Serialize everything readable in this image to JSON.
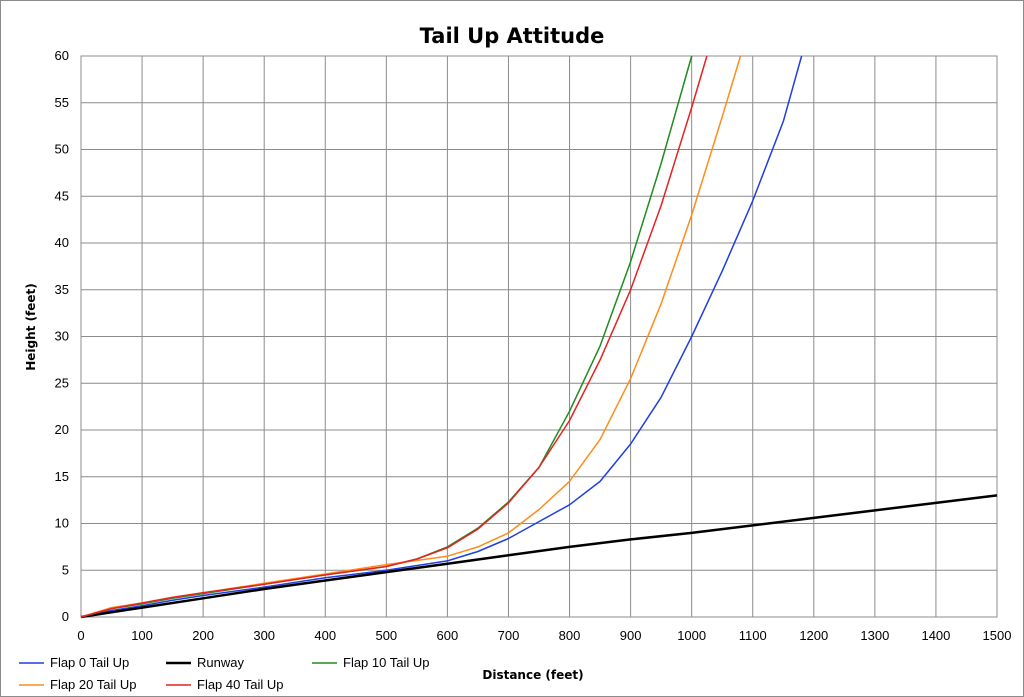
{
  "chart_data": {
    "type": "line",
    "title": "Tail Up Attitude",
    "xlabel": "Distance (feet)",
    "ylabel": "Height (feet)",
    "xlim": [
      0,
      1500
    ],
    "ylim": [
      0,
      60
    ],
    "x_ticks": [
      0,
      100,
      200,
      300,
      400,
      500,
      600,
      700,
      800,
      900,
      1000,
      1100,
      1200,
      1300,
      1400,
      1500
    ],
    "y_ticks": [
      0,
      5,
      10,
      15,
      20,
      25,
      30,
      35,
      40,
      45,
      50,
      55,
      60
    ],
    "grid": true,
    "legend_position": "bottom-left",
    "series": [
      {
        "name": "Flap 0 Tail Up",
        "color": "#1f3fe0",
        "x": [
          0,
          50,
          100,
          150,
          200,
          300,
          400,
          500,
          600,
          650,
          700,
          750,
          800,
          850,
          900,
          950,
          1000,
          1050,
          1100,
          1150,
          1180
        ],
        "y": [
          0,
          0.7,
          1.2,
          1.8,
          2.3,
          3.2,
          4.2,
          5.0,
          6.0,
          7.0,
          8.4,
          10.2,
          12.0,
          14.5,
          18.5,
          23.5,
          30,
          37,
          44.5,
          53,
          60
        ]
      },
      {
        "name": "Runway",
        "color": "#000000",
        "x": [
          0,
          50,
          100,
          200,
          300,
          400,
          500,
          600,
          700,
          800,
          900,
          1000,
          1100,
          1200,
          1300,
          1400,
          1500
        ],
        "y": [
          0,
          0.5,
          1.0,
          2.0,
          3.0,
          3.9,
          4.8,
          5.7,
          6.6,
          7.5,
          8.3,
          9.0,
          9.8,
          10.6,
          11.4,
          12.2,
          13.0
        ]
      },
      {
        "name": "Flap 10 Tail Up",
        "color": "#1e8c1e",
        "x": [
          0,
          50,
          100,
          150,
          200,
          300,
          400,
          500,
          550,
          600,
          650,
          700,
          750,
          800,
          850,
          900,
          950,
          1000
        ],
        "y": [
          0,
          0.9,
          1.4,
          2.0,
          2.5,
          3.5,
          4.5,
          5.4,
          6.2,
          7.5,
          9.5,
          12.3,
          16.0,
          22.0,
          29.0,
          38.0,
          48.5,
          60
        ]
      },
      {
        "name": "Flap 20 Tail Up",
        "color": "#ff8c1a",
        "x": [
          0,
          50,
          100,
          150,
          200,
          300,
          400,
          500,
          600,
          650,
          700,
          750,
          800,
          850,
          900,
          950,
          1000,
          1050,
          1080
        ],
        "y": [
          0,
          1.0,
          1.5,
          2.1,
          2.6,
          3.6,
          4.6,
          5.6,
          6.5,
          7.5,
          9.0,
          11.5,
          14.5,
          19.0,
          25.5,
          33.5,
          43.0,
          53.5,
          60
        ]
      },
      {
        "name": "Flap 40 Tail Up",
        "color": "#e52222",
        "x": [
          0,
          50,
          100,
          150,
          200,
          300,
          400,
          500,
          550,
          600,
          650,
          700,
          750,
          800,
          850,
          900,
          950,
          1000,
          1025
        ],
        "y": [
          0,
          0.9,
          1.5,
          2.1,
          2.6,
          3.5,
          4.5,
          5.4,
          6.2,
          7.4,
          9.4,
          12.2,
          16.0,
          21.0,
          27.5,
          35.0,
          44.0,
          54.5,
          60
        ]
      }
    ]
  }
}
